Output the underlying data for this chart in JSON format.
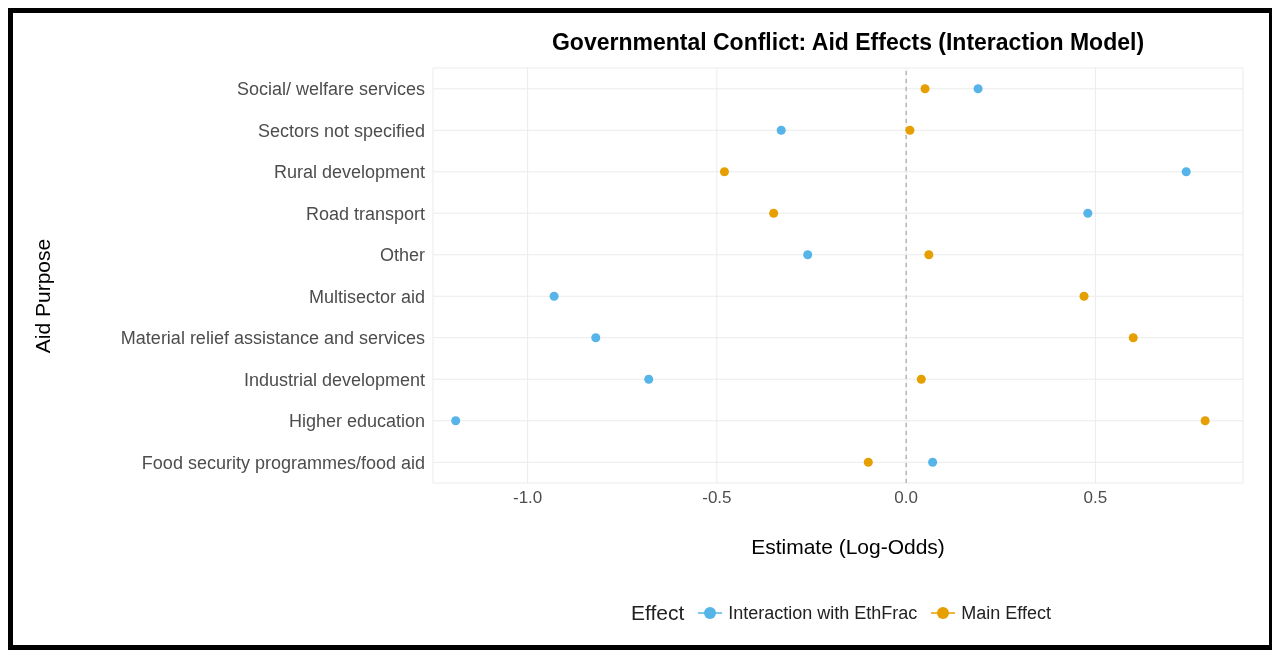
{
  "chart_data": {
    "type": "scatter",
    "title": "Governmental Conflict: Aid Effects (Interaction Model)",
    "xlabel": "Estimate (Log-Odds)",
    "ylabel": "Aid Purpose",
    "legend_title": "Effect",
    "categories": [
      "Social/ welfare services",
      "Sectors not specified",
      "Rural development",
      "Road transport",
      "Other",
      "Multisector aid",
      "Material relief assistance and services",
      "Industrial development",
      "Higher education",
      "Food security programmes/food aid"
    ],
    "series": [
      {
        "name": "Interaction with EthFrac",
        "color": "#56b4e9",
        "values": [
          0.19,
          -0.33,
          0.74,
          0.48,
          -0.26,
          -0.93,
          -0.82,
          -0.68,
          -1.19,
          0.07
        ]
      },
      {
        "name": "Main Effect",
        "color": "#e69f00",
        "values": [
          0.05,
          0.01,
          -0.48,
          -0.35,
          0.06,
          0.47,
          0.6,
          0.04,
          0.79,
          -0.1
        ]
      }
    ],
    "orientation": "horizontal",
    "xlim": [
      -1.25,
      0.89
    ],
    "xticks": [
      {
        "value": -1,
        "label": "-1.0"
      },
      {
        "value": -0.5,
        "label": "-0.5"
      },
      {
        "value": 0,
        "label": "0.0"
      },
      {
        "value": 0.5,
        "label": "0.5"
      }
    ],
    "ref_lines": [
      {
        "axis": "x",
        "value": 0,
        "color": "#999999",
        "line_style": "dashed"
      }
    ],
    "grid": true,
    "legend": "bottom",
    "marker": "circle"
  }
}
